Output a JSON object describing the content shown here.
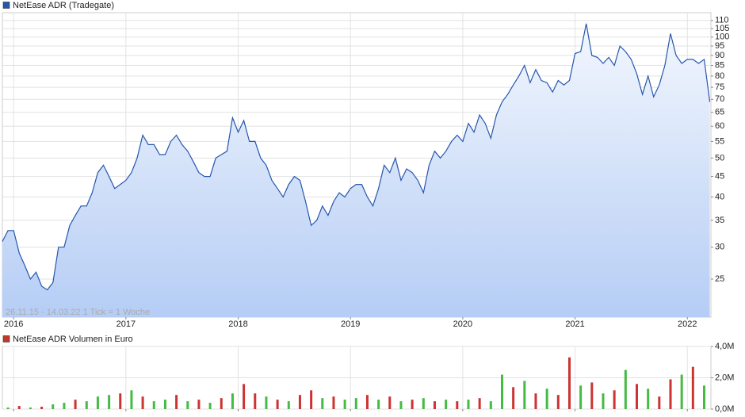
{
  "chart_data": [
    {
      "type": "area",
      "legend": "NetEase ADR (Tradegate)",
      "annotation": "26.11.15 - 14.03.22   1 Tick = 1 Woche",
      "color": "#2557ad",
      "log_scale": true,
      "grid": true,
      "ylim": [
        20.1,
        115
      ],
      "yticks": [
        25,
        30,
        35,
        40,
        45,
        50,
        55,
        60,
        65,
        70,
        75,
        80,
        85,
        90,
        95,
        100,
        105,
        110
      ],
      "xlim": [
        2015.9,
        2022.21
      ],
      "xticks": [
        2016,
        2017,
        2018,
        2019,
        2020,
        2021,
        2022
      ],
      "x": [
        2015.9,
        2015.95,
        2016.0,
        2016.05,
        2016.1,
        2016.15,
        2016.2,
        2016.25,
        2016.3,
        2016.35,
        2016.4,
        2016.45,
        2016.5,
        2016.55,
        2016.6,
        2016.65,
        2016.7,
        2016.75,
        2016.8,
        2016.85,
        2016.9,
        2016.95,
        2017.0,
        2017.05,
        2017.1,
        2017.15,
        2017.2,
        2017.25,
        2017.3,
        2017.35,
        2017.4,
        2017.45,
        2017.5,
        2017.55,
        2017.6,
        2017.65,
        2017.7,
        2017.75,
        2017.8,
        2017.85,
        2017.9,
        2017.95,
        2018.0,
        2018.05,
        2018.1,
        2018.15,
        2018.2,
        2018.25,
        2018.3,
        2018.35,
        2018.4,
        2018.45,
        2018.5,
        2018.55,
        2018.6,
        2018.65,
        2018.7,
        2018.75,
        2018.8,
        2018.85,
        2018.9,
        2018.95,
        2019.0,
        2019.05,
        2019.1,
        2019.15,
        2019.2,
        2019.25,
        2019.3,
        2019.35,
        2019.4,
        2019.45,
        2019.5,
        2019.55,
        2019.6,
        2019.65,
        2019.7,
        2019.75,
        2019.8,
        2019.85,
        2019.9,
        2019.95,
        2020.0,
        2020.05,
        2020.1,
        2020.15,
        2020.2,
        2020.25,
        2020.3,
        2020.35,
        2020.4,
        2020.45,
        2020.5,
        2020.55,
        2020.6,
        2020.65,
        2020.7,
        2020.75,
        2020.8,
        2020.85,
        2020.9,
        2020.95,
        2021.0,
        2021.05,
        2021.1,
        2021.15,
        2021.2,
        2021.25,
        2021.3,
        2021.35,
        2021.4,
        2021.45,
        2021.5,
        2021.55,
        2021.6,
        2021.65,
        2021.7,
        2021.75,
        2021.8,
        2021.85,
        2021.9,
        2021.95,
        2022.0,
        2022.05,
        2022.1,
        2022.15,
        2022.2
      ],
      "values": [
        31,
        33,
        33,
        29,
        27,
        25,
        26,
        24,
        23.5,
        24.5,
        30,
        30,
        34,
        36,
        38,
        38,
        41,
        46,
        48,
        45,
        42,
        43,
        44,
        46,
        50,
        57,
        54,
        54,
        51,
        51,
        55,
        57,
        54,
        52,
        49,
        46,
        45,
        45,
        50,
        51,
        52,
        63,
        58,
        62,
        55,
        55,
        50,
        48,
        44,
        42,
        40,
        43,
        45,
        44,
        39,
        34,
        35,
        38,
        36,
        39,
        41,
        40,
        42,
        43,
        43,
        40,
        38,
        42,
        48,
        46,
        50,
        44,
        47,
        46,
        44,
        41,
        48,
        52,
        50,
        52,
        55,
        57,
        55,
        61,
        58,
        64,
        61,
        56,
        64,
        69,
        72,
        76,
        80,
        85,
        77,
        83,
        78,
        77,
        73,
        78,
        76,
        78,
        91,
        92,
        108,
        90,
        89,
        86,
        89,
        85,
        95,
        92,
        88,
        81,
        72,
        80,
        71,
        76,
        85,
        102,
        90,
        86,
        88,
        88,
        86,
        88,
        69
      ]
    },
    {
      "type": "bar",
      "legend": "NetEase ADR Volumen in Euro",
      "color": "#c0392b",
      "grid": true,
      "ylim": [
        0,
        4000000
      ],
      "yticks": [
        {
          "value": 0,
          "label": "0,0M"
        },
        {
          "value": 2000000,
          "label": "2,0M"
        },
        {
          "value": 4000000,
          "label": "4,0M"
        }
      ],
      "xlim": [
        2015.9,
        2022.21
      ],
      "xticks": [
        2016,
        2017,
        2018,
        2019,
        2020,
        2021,
        2022
      ],
      "x": [
        2015.95,
        2016.05,
        2016.15,
        2016.25,
        2016.35,
        2016.45,
        2016.55,
        2016.65,
        2016.75,
        2016.85,
        2016.95,
        2017.05,
        2017.15,
        2017.25,
        2017.35,
        2017.45,
        2017.55,
        2017.65,
        2017.75,
        2017.85,
        2017.95,
        2018.05,
        2018.15,
        2018.25,
        2018.35,
        2018.45,
        2018.55,
        2018.65,
        2018.75,
        2018.85,
        2018.95,
        2019.05,
        2019.15,
        2019.25,
        2019.35,
        2019.45,
        2019.55,
        2019.65,
        2019.75,
        2019.85,
        2019.95,
        2020.05,
        2020.15,
        2020.25,
        2020.35,
        2020.45,
        2020.55,
        2020.65,
        2020.75,
        2020.85,
        2020.95,
        2021.05,
        2021.15,
        2021.25,
        2021.35,
        2021.45,
        2021.55,
        2021.65,
        2021.75,
        2021.85,
        2021.95,
        2022.05,
        2022.15
      ],
      "values": [
        100000,
        200000,
        100000,
        150000,
        300000,
        400000,
        600000,
        500000,
        800000,
        900000,
        1000000,
        1200000,
        800000,
        500000,
        600000,
        900000,
        500000,
        600000,
        400000,
        700000,
        1000000,
        1600000,
        1000000,
        800000,
        600000,
        500000,
        900000,
        1200000,
        700000,
        800000,
        600000,
        700000,
        900000,
        600000,
        800000,
        500000,
        600000,
        700000,
        500000,
        600000,
        500000,
        600000,
        700000,
        500000,
        2200000,
        1400000,
        1800000,
        1000000,
        1300000,
        900000,
        3300000,
        1500000,
        1700000,
        1000000,
        1200000,
        2500000,
        1600000,
        1300000,
        800000,
        1900000,
        2200000,
        2700000,
        1500000
      ],
      "colors": [
        "#44bb44",
        "#cc3333",
        "#44bb44",
        "#cc3333",
        "#44bb44",
        "#44bb44",
        "#cc3333",
        "#44bb44",
        "#44bb44",
        "#44bb44",
        "#cc3333",
        "#44bb44",
        "#cc3333",
        "#44bb44",
        "#44bb44",
        "#cc3333",
        "#44bb44",
        "#cc3333",
        "#44bb44",
        "#cc3333",
        "#44bb44",
        "#cc3333",
        "#cc3333",
        "#44bb44",
        "#cc3333",
        "#44bb44",
        "#cc3333",
        "#cc3333",
        "#44bb44",
        "#cc3333",
        "#44bb44",
        "#44bb44",
        "#cc3333",
        "#44bb44",
        "#cc3333",
        "#44bb44",
        "#cc3333",
        "#44bb44",
        "#cc3333",
        "#44bb44",
        "#cc3333",
        "#44bb44",
        "#cc3333",
        "#44bb44",
        "#44bb44",
        "#cc3333",
        "#44bb44",
        "#cc3333",
        "#44bb44",
        "#cc3333",
        "#cc3333",
        "#44bb44",
        "#cc3333",
        "#44bb44",
        "#cc3333",
        "#44bb44",
        "#cc3333",
        "#44bb44",
        "#cc3333",
        "#cc3333",
        "#44bb44",
        "#cc3333",
        "#44bb44"
      ]
    }
  ]
}
